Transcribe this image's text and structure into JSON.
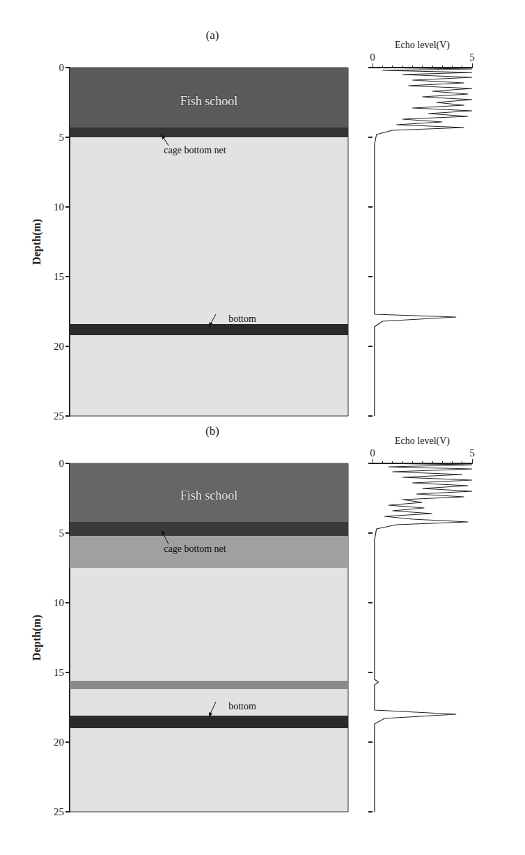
{
  "chart_data": [
    {
      "type": "echogram",
      "title": "(a)",
      "y_label": "Depth(m)",
      "ylim": [
        0,
        25
      ],
      "yticks": [
        0,
        5,
        10,
        15,
        20,
        25
      ],
      "tick_labels": "y",
      "series": [
        {
          "color": "#5a5a5a",
          "values": [
            0,
            4.3
          ]
        },
        {
          "color": "#333333",
          "values": [
            4.3,
            5.0
          ]
        },
        {
          "color": "#2a2a2a",
          "values": [
            18.4,
            19.2
          ]
        }
      ],
      "annotations": [
        {
          "text": "Fish school",
          "y": 2.4
        },
        {
          "text": "cage bottom net",
          "y": 5.9,
          "arrow_to": 4.8
        },
        {
          "text": "bottom",
          "y": 18.0,
          "arrow_to": 18.6
        }
      ]
    },
    {
      "type": "line",
      "x_label": "Echo level(V)",
      "xlim": [
        0,
        5
      ],
      "xticks": [
        0,
        5
      ],
      "ylim": [
        0,
        25
      ],
      "yticks": [
        0,
        5,
        10,
        15,
        20,
        25
      ],
      "tick_labels": "x",
      "color": "#222222",
      "x": [
        0.2,
        5,
        0.5,
        5,
        1.5,
        5,
        2.0,
        4.6,
        1.8,
        5,
        3.0,
        4.8,
        2.5,
        5,
        3.2,
        4.6,
        2.0,
        5,
        2.8,
        4.8,
        1.5,
        3.5,
        1.2,
        4.6,
        1.0,
        0.2,
        0.1,
        0.1,
        4.2,
        0.5,
        0.1,
        0.1
      ],
      "y": [
        0,
        0.1,
        0.2,
        0.35,
        0.5,
        0.7,
        0.9,
        1.1,
        1.3,
        1.5,
        1.7,
        1.9,
        2.1,
        2.3,
        2.5,
        2.7,
        2.9,
        3.1,
        3.3,
        3.5,
        3.7,
        3.9,
        4.1,
        4.3,
        4.5,
        4.8,
        5.5,
        17.7,
        17.9,
        18.2,
        18.6,
        25
      ]
    },
    {
      "type": "echogram",
      "title": "(b)",
      "y_label": "Depth(m)",
      "ylim": [
        0,
        25
      ],
      "yticks": [
        0,
        5,
        10,
        15,
        20,
        25
      ],
      "tick_labels": "y",
      "series": [
        {
          "color": "#666666",
          "values": [
            0,
            4.2
          ]
        },
        {
          "color": "#3a3a3a",
          "values": [
            4.2,
            5.2
          ]
        },
        {
          "color": "#a0a0a0",
          "values": [
            5.2,
            7.5
          ]
        },
        {
          "color": "#8a8a8a",
          "values": [
            15.6,
            16.2
          ]
        },
        {
          "color": "#2a2a2a",
          "values": [
            18.1,
            19.0
          ]
        }
      ],
      "annotations": [
        {
          "text": "Fish school",
          "y": 2.3
        },
        {
          "text": "cage bottom net",
          "y": 6.1,
          "arrow_to": 4.8
        },
        {
          "text": "bottom",
          "y": 17.4,
          "arrow_to": 18.2
        }
      ]
    },
    {
      "type": "line",
      "x_label": "Echo level(V)",
      "xlim": [
        0,
        5
      ],
      "xticks": [
        0,
        5
      ],
      "ylim": [
        0,
        25
      ],
      "yticks": [
        0,
        5,
        10,
        15,
        20,
        25
      ],
      "tick_labels": "x",
      "color": "#222222",
      "x": [
        0.2,
        5,
        0.8,
        5,
        1.0,
        4.5,
        1.5,
        5,
        2.0,
        4.8,
        2.5,
        5,
        2.2,
        4.6,
        1.5,
        2.5,
        0.8,
        2.6,
        1.0,
        3.0,
        0.6,
        2.0,
        4.8,
        1.2,
        0.2,
        0.1,
        0.1,
        0.3,
        0.1,
        0.1,
        4.2,
        0.6,
        0.1,
        0.1
      ],
      "y": [
        0,
        0.1,
        0.25,
        0.4,
        0.6,
        0.8,
        1.0,
        1.2,
        1.4,
        1.6,
        1.8,
        2.0,
        2.2,
        2.4,
        2.6,
        2.8,
        3.0,
        3.2,
        3.4,
        3.6,
        3.8,
        4.0,
        4.2,
        4.4,
        4.7,
        5.5,
        15.5,
        15.7,
        15.9,
        17.7,
        18.0,
        18.3,
        18.7,
        25
      ]
    }
  ]
}
